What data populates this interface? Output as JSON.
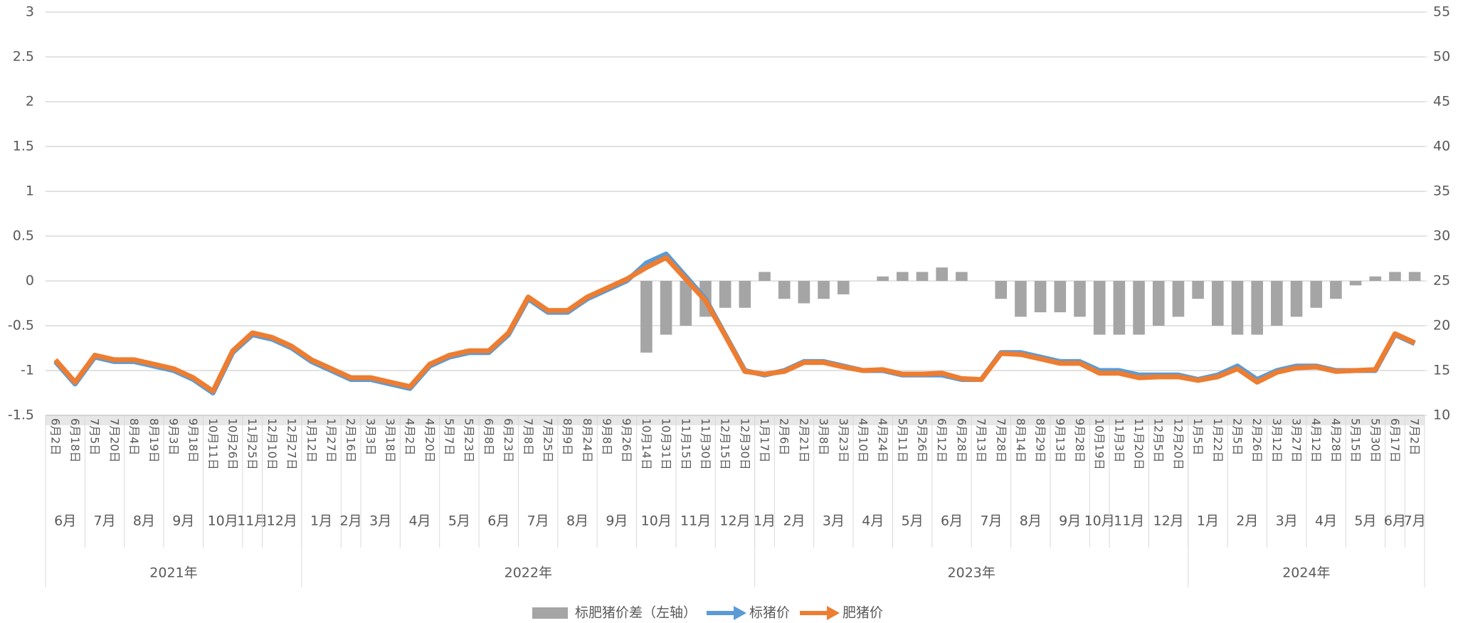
{
  "chart_data": {
    "type": "bar-line",
    "categories": [
      "6月2日",
      "6月18日",
      "7月5日",
      "7月20日",
      "8月4日",
      "8月19日",
      "9月3日",
      "9月18日",
      "10月11日",
      "10月26日",
      "11月25日",
      "12月10日",
      "12月27日",
      "1月12日",
      "1月27日",
      "2月16日",
      "3月3日",
      "3月18日",
      "4月2日",
      "4月20日",
      "5月7日",
      "5月23日",
      "6月8日",
      "6月23日",
      "7月8日",
      "7月25日",
      "8月9日",
      "8月24日",
      "9月8日",
      "9月26日",
      "10月14日",
      "10月31日",
      "11月15日",
      "11月30日",
      "12月15日",
      "12月30日",
      "1月17日",
      "2月6日",
      "2月21日",
      "3月8日",
      "3月23日",
      "4月10日",
      "4月24日",
      "5月11日",
      "5月26日",
      "6月12日",
      "6月28日",
      "7月13日",
      "7月28日",
      "8月14日",
      "8月29日",
      "9月13日",
      "9月28日",
      "10月19日",
      "11月3日",
      "11月20日",
      "12月5日",
      "12月20日",
      "1月5日",
      "1月22日",
      "2月5日",
      "2月26日",
      "3月12日",
      "3月27日",
      "4月12日",
      "4月28日",
      "5月15日",
      "5月30日",
      "6月17日",
      "7月2日"
    ],
    "x_groups": [
      {
        "year": "2021年",
        "months": [
          "6月",
          "7月",
          "8月",
          "9月",
          "10月",
          "11月",
          "12月"
        ]
      },
      {
        "year": "2022年",
        "months": [
          "1月",
          "2月",
          "3月",
          "4月",
          "5月",
          "6月",
          "7月",
          "8月",
          "9月",
          "10月",
          "11月",
          "12月"
        ]
      },
      {
        "year": "2023年",
        "months": [
          "1月",
          "2月",
          "3月",
          "4月",
          "5月",
          "6月",
          "7月",
          "8月",
          "9月",
          "10月",
          "11月",
          "12月"
        ]
      },
      {
        "year": "2024年",
        "months": [
          "1月",
          "2月",
          "3月",
          "4月",
          "5月",
          "6月",
          "7月"
        ]
      }
    ],
    "series": [
      {
        "name": "标肥猪价差（左轴）",
        "color": "#a5a5a5",
        "type": "bar",
        "axis": "y",
        "values": [
          0,
          0,
          0,
          0,
          0,
          0,
          0,
          0,
          0,
          0,
          0,
          0,
          0,
          0,
          0,
          0,
          0,
          0,
          0,
          0,
          0,
          0,
          0,
          0,
          0,
          0,
          0,
          0,
          0,
          0,
          -0.8,
          -0.6,
          -0.5,
          -0.4,
          -0.3,
          -0.3,
          0.1,
          -0.2,
          -0.25,
          -0.2,
          -0.15,
          0,
          0.05,
          0.1,
          0.1,
          0.15,
          0.1,
          0,
          -0.2,
          -0.4,
          -0.35,
          -0.35,
          -0.4,
          -0.6,
          -0.6,
          -0.6,
          -0.5,
          -0.4,
          -0.2,
          -0.5,
          -0.6,
          -0.6,
          -0.5,
          -0.4,
          -0.3,
          -0.2,
          -0.05,
          0.05,
          0.1,
          0.1
        ]
      },
      {
        "name": "标猪价",
        "color": "#5b9bd5",
        "type": "line",
        "axis": "y2",
        "values": [
          16,
          13.5,
          16.5,
          16,
          16,
          15.5,
          15,
          14,
          12.5,
          17,
          19,
          18.5,
          17.5,
          16,
          15,
          14,
          14,
          13.5,
          13,
          15.5,
          16.5,
          17,
          17,
          19,
          23,
          21.5,
          21.5,
          23,
          24,
          25,
          27,
          28,
          25.5,
          23,
          19,
          15,
          14.5,
          15,
          16,
          16,
          15.5,
          15,
          15,
          14.5,
          14.5,
          14.5,
          14,
          14,
          17,
          17,
          16.5,
          16,
          16,
          15,
          15,
          14.5,
          14.5,
          14.5,
          14,
          14.5,
          15.5,
          14,
          15,
          15.5,
          15.5,
          15,
          15,
          15,
          19,
          18
        ]
      },
      {
        "name": "肥猪价",
        "color": "#ed7d31",
        "type": "line",
        "axis": "y2",
        "values": [
          16.2,
          13.7,
          16.7,
          16.2,
          16.2,
          15.7,
          15.2,
          14.2,
          12.7,
          17.2,
          19.2,
          18.7,
          17.7,
          16.2,
          15.2,
          14.2,
          14.2,
          13.7,
          13.2,
          15.7,
          16.7,
          17.2,
          17.2,
          19.2,
          23.2,
          21.7,
          21.7,
          23.2,
          24.2,
          25.2,
          26.5,
          27.6,
          25.2,
          22.8,
          18.9,
          14.9,
          14.6,
          14.9,
          15.9,
          15.9,
          15.4,
          15,
          15.1,
          14.6,
          14.6,
          14.7,
          14.1,
          14,
          16.9,
          16.8,
          16.3,
          15.8,
          15.8,
          14.7,
          14.7,
          14.2,
          14.3,
          14.3,
          13.9,
          14.3,
          15.2,
          13.7,
          14.8,
          15.3,
          15.4,
          14.9,
          15,
          15.1,
          19.1,
          18.1
        ]
      }
    ],
    "ylim": [
      -1.5,
      3
    ],
    "yticks": [
      -1.5,
      -1,
      -0.5,
      0,
      0.5,
      1,
      1.5,
      2,
      2.5,
      3
    ],
    "y2lim": [
      10,
      55
    ],
    "y2ticks": [
      10,
      15,
      20,
      25,
      30,
      35,
      40,
      45,
      50,
      55
    ],
    "grid": true,
    "legend": "bottom"
  }
}
